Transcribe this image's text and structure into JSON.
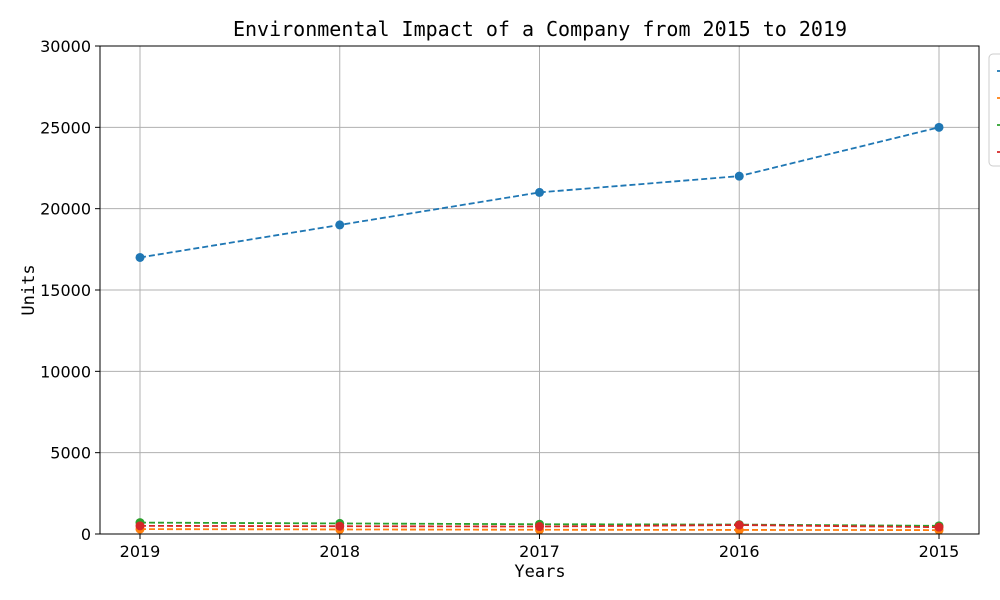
{
  "chart_data": {
    "type": "line",
    "title": "Environmental Impact of a Company from 2015 to 2019",
    "xlabel": "Years",
    "ylabel": "Units",
    "categories": [
      "2019",
      "2018",
      "2017",
      "2016",
      "2015"
    ],
    "ylim": [
      0,
      30000
    ],
    "yticks": [
      0,
      5000,
      10000,
      15000,
      20000,
      25000,
      30000
    ],
    "grid": true,
    "legend_position": "upper-right, clipped at right edge",
    "series": [
      {
        "values": [
          17000,
          19000,
          21000,
          22000,
          25000
        ],
        "color": "#1f77b4"
      },
      {
        "values": [
          300,
          280,
          260,
          250,
          240
        ],
        "color": "#ff7f0e"
      },
      {
        "values": [
          700,
          650,
          600,
          580,
          500
        ],
        "color": "#2ca02c"
      },
      {
        "values": [
          500,
          480,
          460,
          550,
          420
        ],
        "color": "#d62728"
      }
    ]
  }
}
